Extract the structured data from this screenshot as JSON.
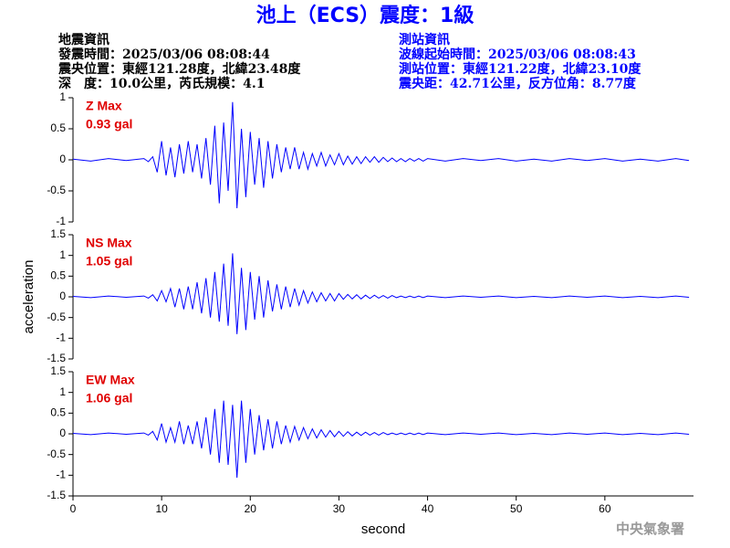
{
  "title": "池上（ECS）震度：1級",
  "header": {
    "left": [
      "地震資訊",
      "發震時間：2025/03/06 08:08:44",
      "震央位置：東經121.28度，北緯23.48度",
      "深　度：10.0公里，芮氏規模：4.1"
    ],
    "right": [
      "測站資訊",
      "波線起始時間：2025/03/06 08:08:43",
      "測站位置：東經121.22度，北緯23.10度",
      "震央距：42.71公里，反方位角：8.77度"
    ]
  },
  "footer": "中央氣象署",
  "chart_data": [
    {
      "type": "line",
      "color": "#0000ff",
      "annotation": [
        "Z Max",
        "0.93 gal"
      ],
      "xlim": [
        0,
        70
      ],
      "ylim": [
        -1,
        1
      ],
      "yticks": [
        -1,
        -0.5,
        0,
        0.5,
        1
      ],
      "x": [
        0,
        2,
        4,
        6,
        8,
        8.5,
        9,
        9.5,
        10,
        10.5,
        11,
        11.5,
        12,
        12.5,
        13,
        13.5,
        14,
        14.5,
        15,
        15.5,
        16,
        16.5,
        17,
        17.5,
        18,
        18.5,
        19,
        19.5,
        20,
        20.5,
        21,
        21.5,
        22,
        22.5,
        23,
        23.5,
        24,
        24.5,
        25,
        25.5,
        26,
        26.5,
        27,
        27.5,
        28,
        28.5,
        29,
        29.5,
        30,
        30.5,
        31,
        31.5,
        32,
        32.5,
        33,
        33.5,
        34,
        34.5,
        35,
        35.5,
        36,
        36.5,
        37,
        37.5,
        38,
        38.5,
        39,
        39.5,
        40,
        42,
        44,
        46,
        48,
        50,
        52,
        54,
        56,
        58,
        60,
        62,
        64,
        66,
        68,
        69.5
      ],
      "values": [
        0.01,
        -0.02,
        0.02,
        -0.01,
        0.02,
        -0.03,
        0.05,
        -0.2,
        0.3,
        -0.25,
        0.2,
        -0.28,
        0.25,
        -0.22,
        0.3,
        -0.2,
        0.25,
        -0.3,
        0.35,
        -0.4,
        0.55,
        -0.7,
        0.6,
        -0.5,
        0.93,
        -0.78,
        0.5,
        -0.6,
        0.45,
        -0.4,
        0.35,
        -0.45,
        0.3,
        -0.3,
        0.25,
        -0.2,
        0.2,
        -0.15,
        0.2,
        -0.15,
        0.12,
        -0.15,
        0.1,
        -0.1,
        0.12,
        -0.1,
        0.08,
        -0.08,
        0.1,
        -0.08,
        0.06,
        -0.07,
        0.05,
        -0.06,
        0.05,
        -0.04,
        0.05,
        -0.04,
        0.04,
        -0.03,
        0.03,
        -0.03,
        0.02,
        -0.03,
        0.02,
        -0.02,
        0.02,
        -0.02,
        0.02,
        -0.02,
        0.02,
        -0.01,
        0.02,
        -0.02,
        0.01,
        -0.02,
        0.02,
        -0.01,
        0.02,
        -0.02,
        0.01,
        -0.02,
        0.02,
        -0.01
      ]
    },
    {
      "type": "line",
      "color": "#0000ff",
      "annotation": [
        "NS Max",
        "1.05 gal"
      ],
      "ylabel": "acceleration",
      "xlim": [
        0,
        70
      ],
      "ylim": [
        -1.5,
        1.5
      ],
      "yticks": [
        -1.5,
        -1,
        -0.5,
        0,
        0.5,
        1,
        1.5
      ],
      "x": [
        0,
        2,
        4,
        6,
        8,
        8.5,
        9,
        9.5,
        10,
        10.5,
        11,
        11.5,
        12,
        12.5,
        13,
        13.5,
        14,
        14.5,
        15,
        15.5,
        16,
        16.5,
        17,
        17.5,
        18,
        18.5,
        19,
        19.5,
        20,
        20.5,
        21,
        21.5,
        22,
        22.5,
        23,
        23.5,
        24,
        24.5,
        25,
        25.5,
        26,
        26.5,
        27,
        27.5,
        28,
        28.5,
        29,
        29.5,
        30,
        30.5,
        31,
        31.5,
        32,
        32.5,
        33,
        33.5,
        34,
        34.5,
        35,
        35.5,
        36,
        36.5,
        37,
        37.5,
        38,
        38.5,
        39,
        39.5,
        40,
        42,
        44,
        46,
        48,
        50,
        52,
        54,
        56,
        58,
        60,
        62,
        64,
        66,
        68,
        69.5
      ],
      "values": [
        0.01,
        -0.02,
        0.02,
        -0.01,
        0.02,
        -0.03,
        0.05,
        -0.1,
        0.15,
        -0.12,
        0.2,
        -0.25,
        0.2,
        -0.3,
        0.25,
        -0.3,
        0.35,
        -0.4,
        0.45,
        -0.5,
        0.6,
        -0.6,
        0.8,
        -0.7,
        1.05,
        -0.9,
        0.7,
        -0.8,
        0.6,
        -0.55,
        0.5,
        -0.5,
        0.4,
        -0.35,
        0.3,
        -0.3,
        0.25,
        -0.25,
        0.2,
        -0.2,
        0.15,
        -0.15,
        0.12,
        -0.12,
        0.1,
        -0.1,
        0.08,
        -0.1,
        0.08,
        -0.06,
        0.06,
        -0.05,
        0.05,
        -0.05,
        0.04,
        -0.04,
        0.04,
        -0.03,
        0.03,
        -0.03,
        0.03,
        -0.02,
        0.02,
        -0.02,
        0.02,
        -0.02,
        0.02,
        -0.02,
        0.02,
        -0.02,
        0.02,
        -0.01,
        0.02,
        -0.02,
        0.01,
        -0.02,
        0.02,
        -0.01,
        0.02,
        -0.02,
        0.01,
        -0.02,
        0.02,
        -0.01
      ]
    },
    {
      "type": "line",
      "color": "#0000ff",
      "annotation": [
        "EW Max",
        "1.06 gal"
      ],
      "xlabel": "second",
      "xlim": [
        0,
        70
      ],
      "xticks": [
        0,
        10,
        20,
        30,
        40,
        50,
        60
      ],
      "ylim": [
        -1.5,
        1.5
      ],
      "yticks": [
        -1.5,
        -1,
        -0.5,
        0,
        0.5,
        1,
        1.5
      ],
      "x": [
        0,
        2,
        4,
        6,
        8,
        8.5,
        9,
        9.5,
        10,
        10.5,
        11,
        11.5,
        12,
        12.5,
        13,
        13.5,
        14,
        14.5,
        15,
        15.5,
        16,
        16.5,
        17,
        17.5,
        18,
        18.5,
        19,
        19.5,
        20,
        20.5,
        21,
        21.5,
        22,
        22.5,
        23,
        23.5,
        24,
        24.5,
        25,
        25.5,
        26,
        26.5,
        27,
        27.5,
        28,
        28.5,
        29,
        29.5,
        30,
        30.5,
        31,
        31.5,
        32,
        32.5,
        33,
        33.5,
        34,
        34.5,
        35,
        35.5,
        36,
        36.5,
        37,
        37.5,
        38,
        38.5,
        39,
        39.5,
        40,
        42,
        44,
        46,
        48,
        50,
        52,
        54,
        56,
        58,
        60,
        62,
        64,
        66,
        68,
        69.5
      ],
      "values": [
        0.01,
        -0.02,
        0.02,
        -0.01,
        0.02,
        -0.03,
        0.06,
        -0.15,
        0.25,
        -0.2,
        0.15,
        -0.2,
        0.3,
        -0.25,
        0.2,
        -0.25,
        0.3,
        -0.35,
        0.4,
        -0.5,
        0.6,
        -0.7,
        0.8,
        -0.75,
        0.7,
        -1.06,
        0.8,
        -0.7,
        0.6,
        -0.5,
        0.45,
        -0.4,
        0.35,
        -0.35,
        0.3,
        -0.25,
        0.2,
        -0.2,
        0.18,
        -0.15,
        0.15,
        -0.12,
        0.12,
        -0.1,
        0.1,
        -0.08,
        0.08,
        -0.07,
        0.06,
        -0.06,
        0.05,
        -0.05,
        0.04,
        -0.04,
        0.04,
        -0.03,
        0.03,
        -0.03,
        0.03,
        -0.02,
        0.02,
        -0.02,
        0.02,
        -0.02,
        0.02,
        -0.02,
        0.02,
        -0.02,
        0.02,
        -0.02,
        0.02,
        -0.01,
        0.02,
        -0.02,
        0.01,
        -0.02,
        0.02,
        -0.01,
        0.02,
        -0.02,
        0.01,
        -0.02,
        0.02,
        -0.01
      ]
    }
  ]
}
